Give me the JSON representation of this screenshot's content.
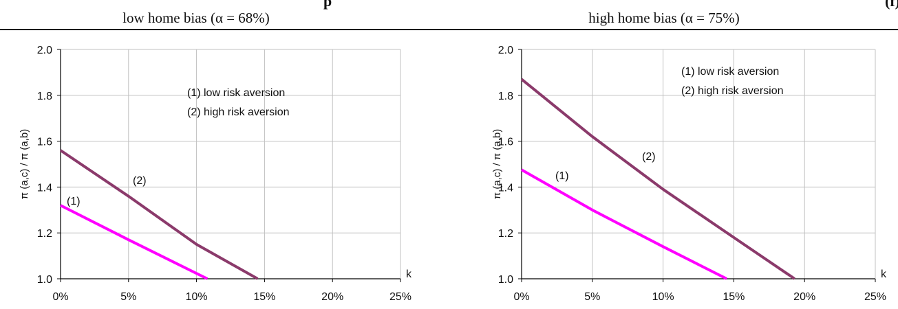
{
  "header": {
    "cut_title_left": "p",
    "cut_title_right": "(f)"
  },
  "chart_data": [
    {
      "type": "line",
      "title": "low home bias (α = 68%)",
      "xlabel": "k",
      "ylabel": "π (a,c) / π (a,b)",
      "xlim": [
        0,
        25
      ],
      "ylim": [
        1.0,
        2.0
      ],
      "x_ticks": [
        "0%",
        "5%",
        "10%",
        "15%",
        "20%",
        "25%"
      ],
      "y_ticks": [
        "1.0",
        "1.2",
        "1.4",
        "1.6",
        "1.8",
        "2.0"
      ],
      "grid": true,
      "legend_placement": "top-center",
      "legend": [
        "(1) low risk aversion",
        "(2) high risk aversion"
      ],
      "series": [
        {
          "name": "(1)",
          "color": "#ff00ff",
          "x": [
            0,
            5,
            10.8
          ],
          "y": [
            1.32,
            1.17,
            1.0
          ]
        },
        {
          "name": "(2)",
          "color": "#8b3a6b",
          "x": [
            0,
            5,
            10,
            14.5
          ],
          "y": [
            1.56,
            1.36,
            1.15,
            1.0
          ]
        }
      ]
    },
    {
      "type": "line",
      "title": "high home bias (α = 75%)",
      "xlabel": "k",
      "ylabel": "π (a,c) / π (a,b)",
      "xlim": [
        0,
        25
      ],
      "ylim": [
        1.0,
        2.0
      ],
      "x_ticks": [
        "0%",
        "5%",
        "10%",
        "15%",
        "20%",
        "25%"
      ],
      "y_ticks": [
        "1.0",
        "1.2",
        "1.4",
        "1.6",
        "1.8",
        "2.0"
      ],
      "grid": true,
      "legend_placement": "top-right",
      "legend": [
        "(1) low risk aversion",
        "(2) high risk aversion"
      ],
      "series": [
        {
          "name": "(1)",
          "color": "#ff00ff",
          "x": [
            0,
            5,
            10,
            14.5
          ],
          "y": [
            1.475,
            1.3,
            1.14,
            1.0
          ]
        },
        {
          "name": "(2)",
          "color": "#8b3a6b",
          "x": [
            0,
            5,
            10,
            15,
            19.3
          ],
          "y": [
            1.87,
            1.62,
            1.39,
            1.18,
            1.0
          ]
        }
      ]
    }
  ]
}
